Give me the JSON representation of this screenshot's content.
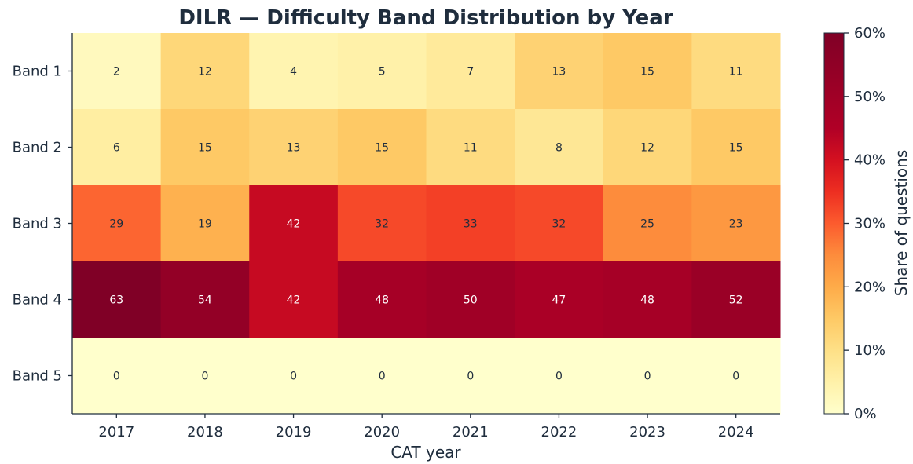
{
  "chart_data": {
    "type": "heatmap",
    "title": "DILR — Difficulty Band Distribution by Year",
    "xlabel": "CAT year",
    "ylabel": "",
    "x_categories": [
      "2017",
      "2018",
      "2019",
      "2020",
      "2021",
      "2022",
      "2023",
      "2024"
    ],
    "y_categories": [
      "Band 1",
      "Band 2",
      "Band 3",
      "Band 4",
      "Band 5"
    ],
    "values": [
      [
        2,
        12,
        4,
        5,
        7,
        13,
        15,
        11
      ],
      [
        6,
        15,
        13,
        15,
        11,
        8,
        12,
        15
      ],
      [
        29,
        19,
        42,
        32,
        33,
        32,
        25,
        23
      ],
      [
        63,
        54,
        42,
        48,
        50,
        47,
        48,
        52
      ],
      [
        0,
        0,
        0,
        0,
        0,
        0,
        0,
        0
      ]
    ],
    "colorbar": {
      "label": "Share of questions",
      "range": [
        0,
        60
      ],
      "ticks": [
        "0%",
        "10%",
        "20%",
        "30%",
        "40%",
        "50%",
        "60%"
      ],
      "colormap": "YlOrRd"
    }
  }
}
